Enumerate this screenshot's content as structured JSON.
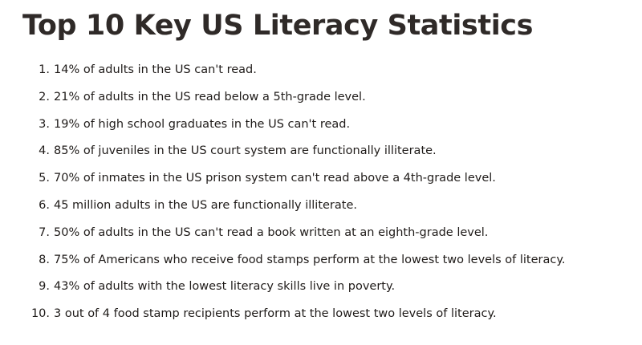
{
  "title": "Top 10 Key US Literacy Statistics",
  "items": [
    {
      "num": "1.",
      "text": "14% of adults in the US can't read."
    },
    {
      "num": "2.",
      "text": "21% of adults in the US read below a 5th-grade level."
    },
    {
      "num": "3.",
      "text": "19% of high school graduates in the US can't read."
    },
    {
      "num": "4.",
      "text": "85% of juveniles in the US court system are functionally illiterate."
    },
    {
      "num": "5.",
      "text": "70% of inmates in the US prison system can't read above a 4th-grade level."
    },
    {
      "num": "6.",
      "text": "45 million adults in the US are functionally illiterate."
    },
    {
      "num": "7.",
      "text": "50% of adults in the US can't read a book written at an eighth-grade level."
    },
    {
      "num": "8.",
      "text": "75% of Americans who receive food stamps perform at the lowest two levels of literacy."
    },
    {
      "num": "9.",
      "text": "43% of adults with the lowest literacy skills live in poverty."
    },
    {
      "num": "10.",
      "text": "3 out of 4 food stamp recipients perform at the lowest two levels of literacy."
    }
  ]
}
